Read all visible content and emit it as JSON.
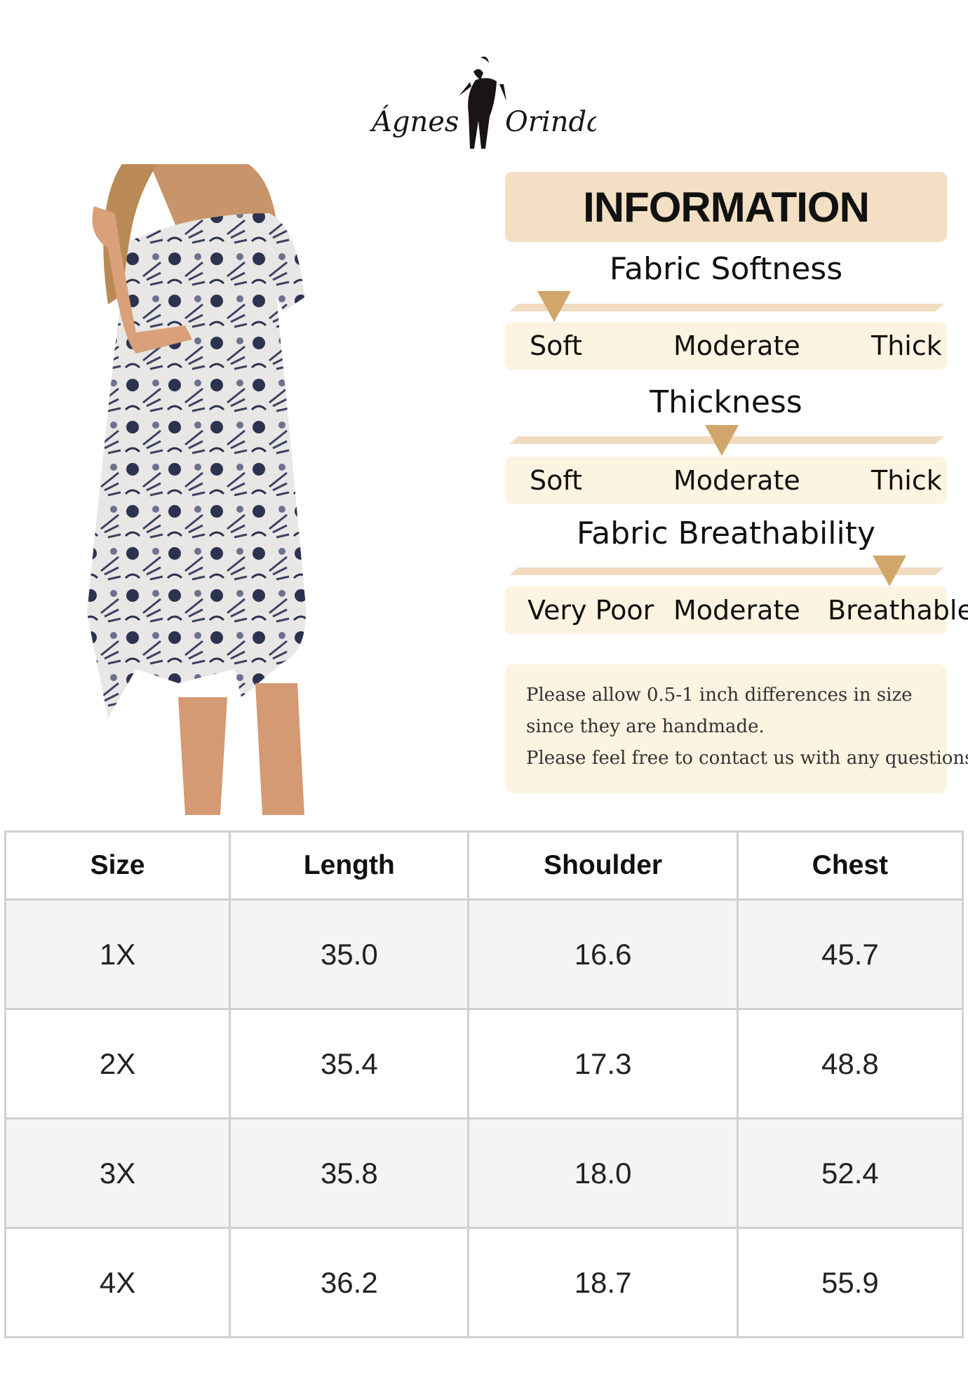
{
  "brand": {
    "logo_text": "Ágnes Orinda"
  },
  "info": {
    "title": "INFORMATION",
    "accent_color": "#d2a56a",
    "header_color": "#f3dfc3",
    "scales": [
      {
        "title": "Fabric Softness",
        "labels": [
          "Soft",
          "Moderate",
          "Thick"
        ],
        "level": 0.0
      },
      {
        "title": "Thickness",
        "labels": [
          "Soft",
          "Moderate",
          "Thick"
        ],
        "level": 0.5
      },
      {
        "title": "Fabric Breathability",
        "labels": [
          "Very Poor",
          "Moderate",
          "Breathable"
        ],
        "level": 1.0
      }
    ],
    "note_lines": [
      "Please allow 0.5-1 inch differences in size",
      "since they are handmade.",
      "Please feel free to contact us with any questions."
    ]
  },
  "size_table": {
    "headers": [
      "Size",
      "Length",
      "Shoulder",
      "Chest"
    ],
    "rows": [
      [
        "1X",
        "35.0",
        "16.6",
        "45.7"
      ],
      [
        "2X",
        "35.4",
        "17.3",
        "48.8"
      ],
      [
        "3X",
        "35.8",
        "18.0",
        "52.4"
      ],
      [
        "4X",
        "36.2",
        "18.7",
        "55.9"
      ]
    ]
  }
}
